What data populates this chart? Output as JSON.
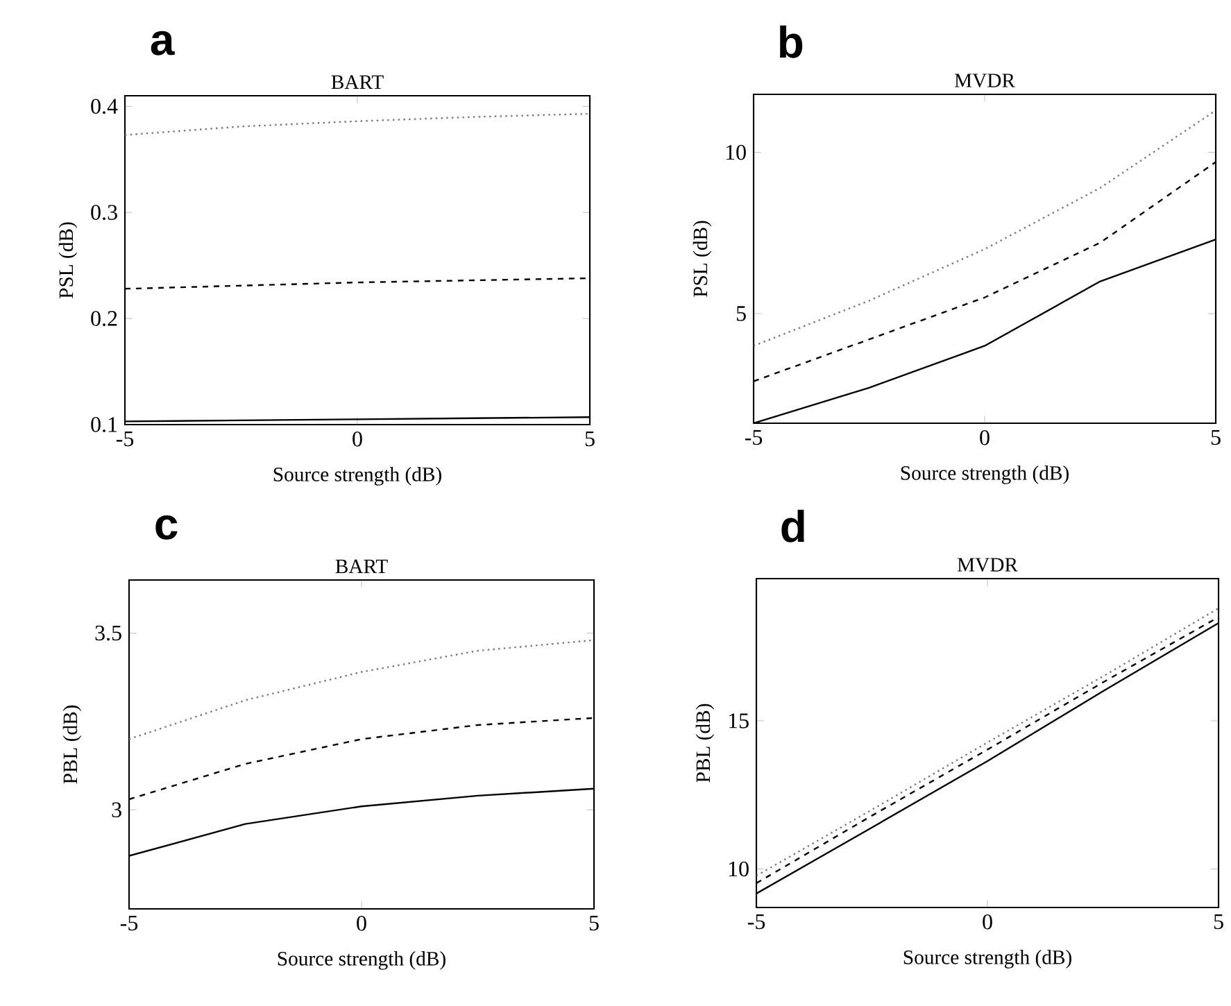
{
  "chart_data": [
    {
      "type": "line",
      "title": "BART",
      "xlabel": "Source strength (dB)",
      "ylabel": "PSL (dB)",
      "annotations": [
        "a"
      ],
      "x": [
        -5,
        -2.5,
        0,
        2.5,
        5
      ],
      "xlim": [
        -5,
        5
      ],
      "xticks": [
        -5,
        0,
        5
      ],
      "ylim": [
        0.1,
        0.41
      ],
      "yticks": [
        0.1,
        0.2,
        0.3,
        0.4
      ],
      "series": [
        {
          "color": "#000000",
          "line_style": "solid",
          "values": [
            0.103,
            0.104,
            0.105,
            0.106,
            0.107
          ]
        },
        {
          "color": "#000000",
          "line_style": "dashed",
          "values": [
            0.228,
            0.231,
            0.234,
            0.236,
            0.238
          ]
        },
        {
          "color": "#777777",
          "line_style": "dotted",
          "values": [
            0.373,
            0.381,
            0.386,
            0.39,
            0.393
          ]
        }
      ]
    },
    {
      "type": "line",
      "title": "MVDR",
      "xlabel": "Source strength (dB)",
      "ylabel": "PSL (dB)",
      "annotations": [
        "b"
      ],
      "x": [
        -5,
        -2.5,
        0,
        2.5,
        5
      ],
      "xlim": [
        -5,
        5
      ],
      "xticks": [
        -5,
        0,
        5
      ],
      "ylim": [
        1.6,
        11.8
      ],
      "yticks": [
        5,
        10
      ],
      "series": [
        {
          "color": "#000000",
          "line_style": "solid",
          "values": [
            1.6,
            2.7,
            4.0,
            6.0,
            7.3
          ]
        },
        {
          "color": "#000000",
          "line_style": "dashed",
          "values": [
            2.9,
            4.2,
            5.5,
            7.2,
            9.7
          ]
        },
        {
          "color": "#777777",
          "line_style": "dotted",
          "values": [
            4.0,
            5.4,
            7.0,
            8.9,
            11.3
          ]
        }
      ]
    },
    {
      "type": "line",
      "title": "BART",
      "xlabel": "Source strength (dB)",
      "ylabel": "PBL (dB)",
      "annotations": [
        "c"
      ],
      "x": [
        -5,
        -2.5,
        0,
        2.5,
        5
      ],
      "xlim": [
        -5,
        5
      ],
      "xticks": [
        -5,
        0,
        5
      ],
      "ylim": [
        2.72,
        3.65
      ],
      "yticks": [
        3,
        3.5
      ],
      "series": [
        {
          "color": "#000000",
          "line_style": "solid",
          "values": [
            2.87,
            2.96,
            3.01,
            3.04,
            3.06
          ]
        },
        {
          "color": "#000000",
          "line_style": "dashed",
          "values": [
            3.03,
            3.13,
            3.2,
            3.24,
            3.26
          ]
        },
        {
          "color": "#777777",
          "line_style": "dotted",
          "values": [
            3.2,
            3.31,
            3.39,
            3.45,
            3.48
          ]
        }
      ]
    },
    {
      "type": "line",
      "title": "MVDR",
      "xlabel": "Source strength (dB)",
      "ylabel": "PBL (dB)",
      "annotations": [
        "d"
      ],
      "x": [
        -5,
        -2.5,
        0,
        2.5,
        5
      ],
      "xlim": [
        -5,
        5
      ],
      "xticks": [
        -5,
        0,
        5
      ],
      "ylim": [
        8.7,
        19.8
      ],
      "yticks": [
        10,
        15
      ],
      "series": [
        {
          "color": "#000000",
          "line_style": "solid",
          "values": [
            9.17,
            11.4,
            13.64,
            16.0,
            18.3
          ]
        },
        {
          "color": "#000000",
          "line_style": "dashed",
          "values": [
            9.52,
            11.8,
            14.03,
            16.3,
            18.5
          ]
        },
        {
          "color": "#777777",
          "line_style": "dotted",
          "values": [
            9.77,
            12.0,
            14.27,
            16.5,
            18.8
          ]
        }
      ]
    }
  ]
}
